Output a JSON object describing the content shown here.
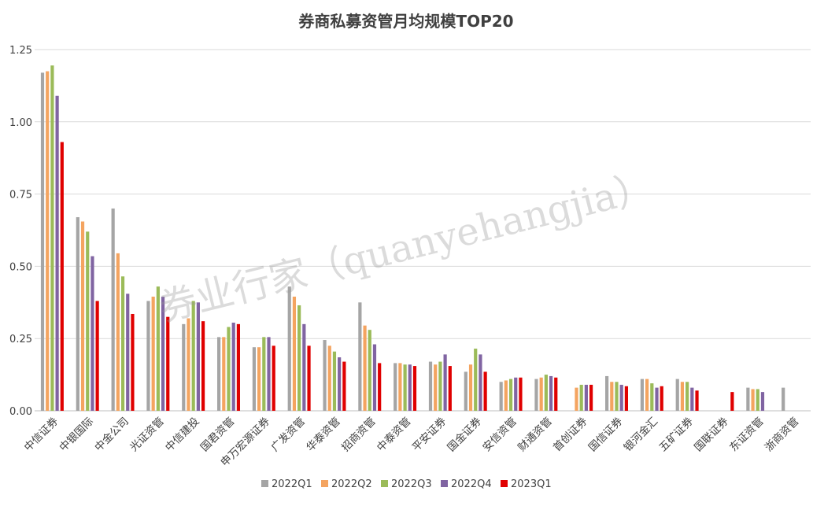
{
  "chart_data": {
    "type": "bar",
    "title": "券商私募资管月均规模TOP20",
    "watermark": "券业行家（quanyehangjia）",
    "ylim": [
      0,
      1.25
    ],
    "yticks": [
      "0.00",
      "0.25",
      "0.50",
      "0.75",
      "1.00",
      "1.25"
    ],
    "grid": true,
    "legend_position": "bottom",
    "categories": [
      "中信证券",
      "中银国际",
      "中金公司",
      "光证资管",
      "中信建投",
      "国君资管",
      "申万宏源证券",
      "广发资管",
      "华泰资管",
      "招商资管",
      "中泰资管",
      "平安证券",
      "国金证券",
      "安信资管",
      "财通资管",
      "首创证券",
      "国信证券",
      "银河金汇",
      "五矿证券",
      "国联证券",
      "东证资管",
      "浙商资管"
    ],
    "series": [
      {
        "name": "2022Q1",
        "color": "#a5a5a5",
        "values": [
          1.17,
          0.67,
          0.7,
          0.38,
          0.3,
          0.255,
          0.22,
          0.43,
          0.245,
          0.375,
          0.165,
          0.17,
          0.135,
          0.1,
          0.11,
          0,
          0.12,
          0.11,
          0.11,
          0,
          0.08,
          0.08
        ]
      },
      {
        "name": "2022Q2",
        "color": "#f4a460",
        "values": [
          1.175,
          0.655,
          0.545,
          0.395,
          0.32,
          0.255,
          0.22,
          0.395,
          0.225,
          0.295,
          0.165,
          0.16,
          0.16,
          0.105,
          0.115,
          0.08,
          0.1,
          0.11,
          0.1,
          0,
          0.075,
          0
        ]
      },
      {
        "name": "2022Q3",
        "color": "#9bbb59",
        "values": [
          1.195,
          0.62,
          0.465,
          0.43,
          0.38,
          0.29,
          0.255,
          0.365,
          0.205,
          0.28,
          0.16,
          0.17,
          0.215,
          0.11,
          0.125,
          0.09,
          0.1,
          0.095,
          0.1,
          0,
          0.075,
          0
        ]
      },
      {
        "name": "2022Q4",
        "color": "#8064a2",
        "values": [
          1.09,
          0.535,
          0.405,
          0.395,
          0.375,
          0.305,
          0.255,
          0.3,
          0.185,
          0.23,
          0.16,
          0.195,
          0.195,
          0.115,
          0.12,
          0.09,
          0.09,
          0.08,
          0.08,
          0,
          0.065,
          0
        ]
      },
      {
        "name": "2023Q1",
        "color": "#e00000",
        "values": [
          0.93,
          0.38,
          0.335,
          0.325,
          0.31,
          0.3,
          0.225,
          0.225,
          0.17,
          0.165,
          0.155,
          0.155,
          0.135,
          0.115,
          0.115,
          0.09,
          0.085,
          0.085,
          0.07,
          0.065,
          0,
          0
        ]
      }
    ]
  }
}
